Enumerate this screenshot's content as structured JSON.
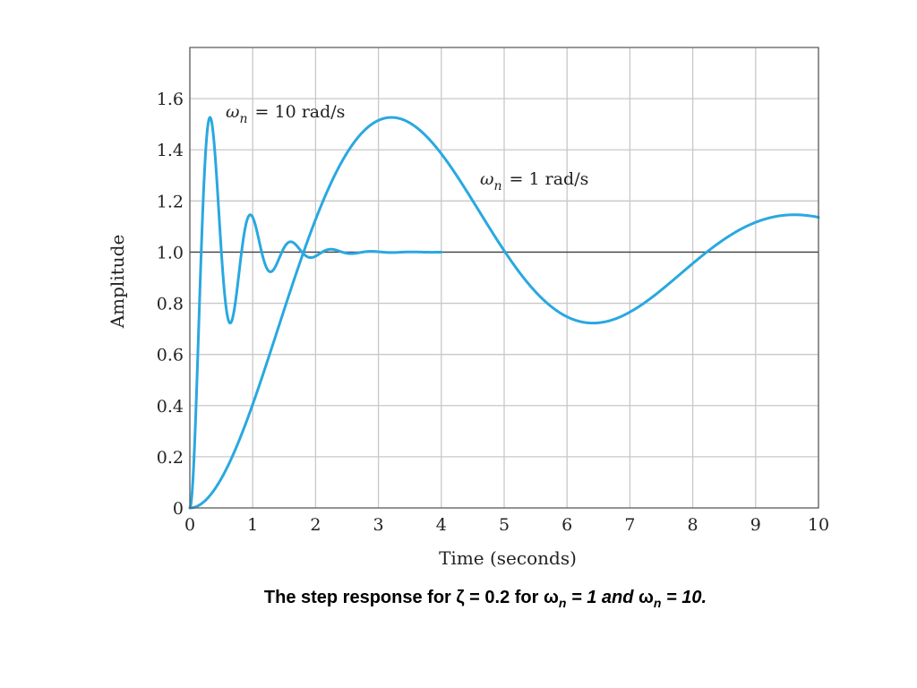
{
  "chart_data": {
    "type": "line",
    "xlabel": "Time (seconds)",
    "ylabel": "Amplitude",
    "xlim": [
      0,
      10
    ],
    "ylim": [
      0,
      1.8
    ],
    "grid": true,
    "x_ticks": [
      "0",
      "1",
      "2",
      "3",
      "4",
      "5",
      "6",
      "7",
      "8",
      "9",
      "10"
    ],
    "y_ticks": [
      "0",
      "0.2",
      "0.4",
      "0.6",
      "0.8",
      "1.0",
      "1.2",
      "1.4",
      "1.6"
    ],
    "reference_line": 1.0,
    "line_color": "#29a8e0",
    "series": [
      {
        "name": "ωn = 10 rad/s",
        "annotation": {
          "symbol": "ω",
          "sub": "n",
          "text": "= 10 rad/s"
        },
        "zeta": 0.2,
        "wn": 10,
        "t_end": 4,
        "points": [
          [
            0,
            0
          ],
          [
            0.1,
            0.4
          ],
          [
            0.32,
            1.53
          ],
          [
            0.64,
            0.75
          ],
          [
            0.96,
            1.15
          ],
          [
            1.28,
            0.91
          ],
          [
            1.6,
            1.05
          ],
          [
            1.92,
            0.97
          ],
          [
            2.24,
            1.02
          ],
          [
            2.56,
            0.99
          ],
          [
            3.2,
            1.0
          ],
          [
            4.0,
            1.0
          ]
        ]
      },
      {
        "name": "ωn = 1 rad/s",
        "annotation": {
          "symbol": "ω",
          "sub": "n",
          "text": "= 1 rad/s"
        },
        "zeta": 0.2,
        "wn": 1,
        "t_end": 10,
        "points": [
          [
            0,
            0
          ],
          [
            1,
            0.42
          ],
          [
            2,
            1.05
          ],
          [
            3.2,
            1.52
          ],
          [
            5,
            1.0
          ],
          [
            6.4,
            0.73
          ],
          [
            8,
            0.93
          ],
          [
            9.6,
            1.14
          ],
          [
            10,
            1.13
          ]
        ]
      }
    ]
  },
  "caption": {
    "prefix": "The step response for ζ =  0.2 for ω",
    "sub1": "n",
    "middle": " = 1 and ",
    "omega2": "ω",
    "sub2": "n",
    "suffix": " = 10."
  }
}
